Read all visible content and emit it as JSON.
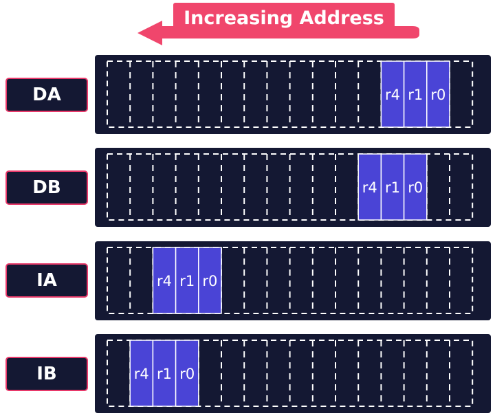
{
  "arrow": {
    "label": "Increasing Address",
    "color": "#f0466c"
  },
  "colors": {
    "strip_bg": "#141833",
    "dash": "#ffffff",
    "register_fill": "#4a44d6",
    "label_border": "#e8396a"
  },
  "slots_per_strip": 16,
  "modes": [
    {
      "label": "DA",
      "registers": [
        "r4",
        "r1",
        "r0"
      ],
      "start_slot": 12
    },
    {
      "label": "DB",
      "registers": [
        "r4",
        "r1",
        "r0"
      ],
      "start_slot": 11
    },
    {
      "label": "IA",
      "registers": [
        "r4",
        "r1",
        "r0"
      ],
      "start_slot": 2
    },
    {
      "label": "IB",
      "registers": [
        "r4",
        "r1",
        "r0"
      ],
      "start_slot": 1
    }
  ]
}
